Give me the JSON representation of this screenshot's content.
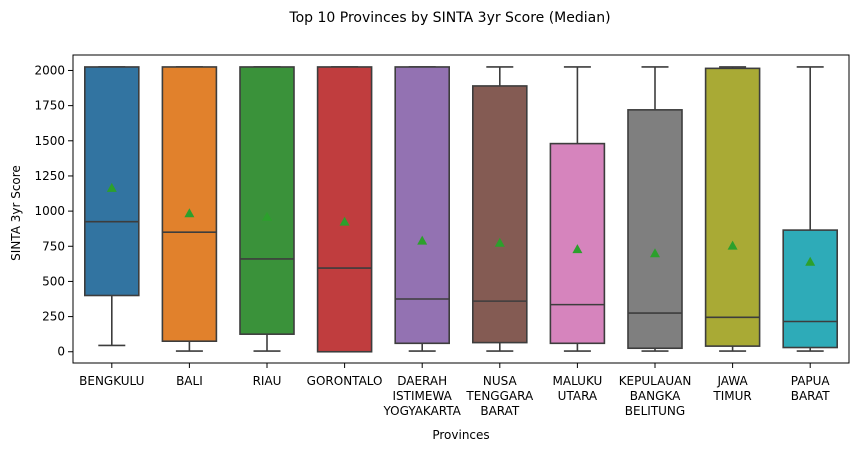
{
  "chart_data": {
    "type": "boxplot",
    "title": "Top 10 Provinces by SINTA 3yr Score (Median)",
    "xlabel": "Provinces",
    "ylabel": "SINTA 3yr Score",
    "ylim": [
      -80,
      2110
    ],
    "yticks": [
      0,
      250,
      500,
      750,
      1000,
      1250,
      1500,
      1750,
      2000
    ],
    "grid": false,
    "legend": "none",
    "categories": [
      {
        "label_lines": [
          "BENGKULU"
        ],
        "color": "#3274a1"
      },
      {
        "label_lines": [
          "BALI"
        ],
        "color": "#e1812c"
      },
      {
        "label_lines": [
          "RIAU"
        ],
        "color": "#3a923a"
      },
      {
        "label_lines": [
          "GORONTALO"
        ],
        "color": "#c03d3e"
      },
      {
        "label_lines": [
          "DAERAH",
          "ISTIMEWA",
          "YOGYAKARTA"
        ],
        "color": "#9372b2"
      },
      {
        "label_lines": [
          "NUSA",
          "TENGGARA",
          "BARAT"
        ],
        "color": "#845b53"
      },
      {
        "label_lines": [
          "MALUKU",
          "UTARA"
        ],
        "color": "#d684bd"
      },
      {
        "label_lines": [
          "KEPULAUAN",
          "BANGKA",
          "BELITUNG"
        ],
        "color": "#7f7f7f"
      },
      {
        "label_lines": [
          "JAWA",
          "TIMUR"
        ],
        "color": "#a9aa35"
      },
      {
        "label_lines": [
          "PAPUA",
          "BARAT"
        ],
        "color": "#2eabb8"
      }
    ],
    "boxes": [
      {
        "whisker_low": 45,
        "q1": 400,
        "median": 925,
        "q3": 2025,
        "whisker_high": 2025,
        "mean": 1165
      },
      {
        "whisker_low": 5,
        "q1": 75,
        "median": 850,
        "q3": 2025,
        "whisker_high": 2025,
        "mean": 985
      },
      {
        "whisker_low": 5,
        "q1": 125,
        "median": 660,
        "q3": 2025,
        "whisker_high": 2025,
        "mean": 960
      },
      {
        "whisker_low": 0,
        "q1": 0,
        "median": 595,
        "q3": 2025,
        "whisker_high": 2025,
        "mean": 925
      },
      {
        "whisker_low": 5,
        "q1": 60,
        "median": 375,
        "q3": 2025,
        "whisker_high": 2025,
        "mean": 790
      },
      {
        "whisker_low": 5,
        "q1": 65,
        "median": 360,
        "q3": 1890,
        "whisker_high": 2025,
        "mean": 775
      },
      {
        "whisker_low": 5,
        "q1": 60,
        "median": 335,
        "q3": 1480,
        "whisker_high": 2025,
        "mean": 730
      },
      {
        "whisker_low": 5,
        "q1": 25,
        "median": 275,
        "q3": 1720,
        "whisker_high": 2025,
        "mean": 700
      },
      {
        "whisker_low": 5,
        "q1": 40,
        "median": 245,
        "q3": 2015,
        "whisker_high": 2025,
        "mean": 755
      },
      {
        "whisker_low": 5,
        "q1": 30,
        "median": 215,
        "q3": 865,
        "whisker_high": 2025,
        "mean": 640
      }
    ],
    "mean_marker_color": "#2ca02c"
  }
}
